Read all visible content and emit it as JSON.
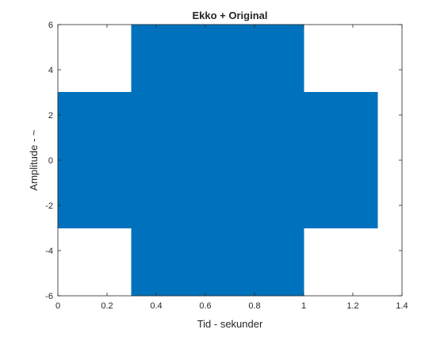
{
  "chart_data": {
    "type": "line",
    "title": "Ekko + Original",
    "xlabel": "Tid - sekunder",
    "ylabel": "Amplitude - ~",
    "xlim": [
      0,
      1.4
    ],
    "ylim": [
      -6,
      6
    ],
    "xticks": [
      0,
      0.2,
      0.4,
      0.6,
      0.8,
      1,
      1.2,
      1.4
    ],
    "xtick_labels": [
      "0",
      "0.2",
      "0.4",
      "0.6",
      "0.8",
      "1",
      "1.2",
      "1.4"
    ],
    "yticks": [
      -6,
      -4,
      -2,
      0,
      2,
      4,
      6
    ],
    "ytick_labels": [
      "-6",
      "-4",
      "-2",
      "0",
      "2",
      "4",
      "6"
    ],
    "grid": false,
    "color": "#0072BD",
    "series": [
      {
        "x": [
          0,
          0.3,
          0.3,
          1.0,
          1.0,
          1.3
        ],
        "envelope_upper": [
          3,
          3,
          6,
          6,
          3,
          3
        ],
        "envelope_lower": [
          -3,
          -3,
          -6,
          -6,
          -3,
          -3
        ]
      }
    ]
  }
}
